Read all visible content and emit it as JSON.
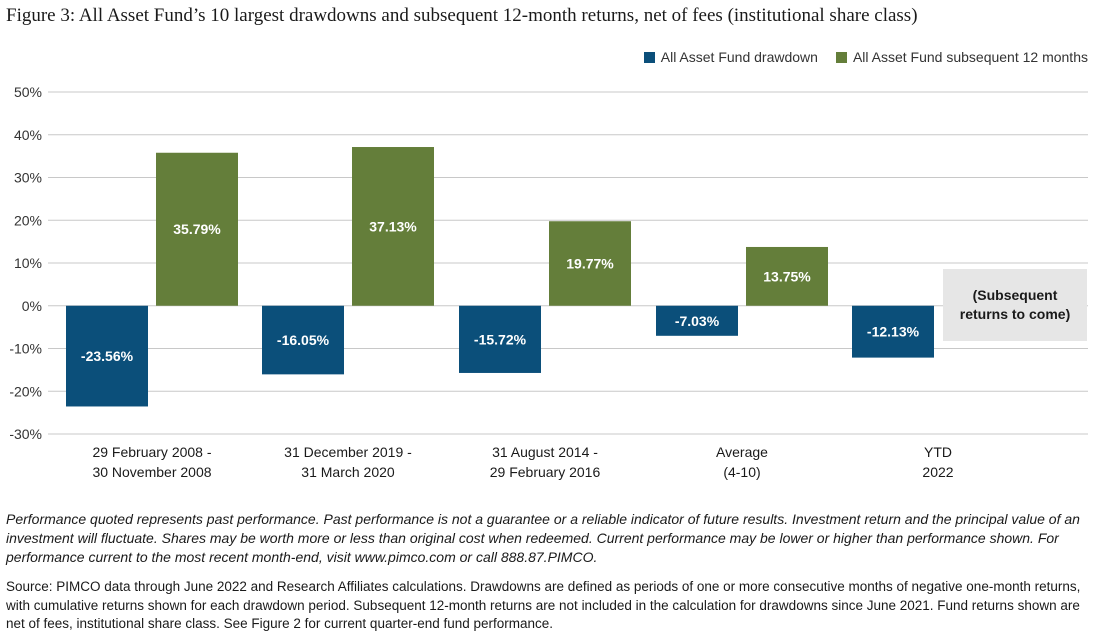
{
  "chart_data": {
    "type": "bar",
    "title": "Figure 3: All Asset Fund’s 10 largest drawdowns and subsequent 12-month returns, net of fees (institutional share class)",
    "categories": [
      [
        "29 February 2008 -",
        "30 November 2008"
      ],
      [
        "31 December 2019 -",
        "31 March 2020"
      ],
      [
        "31 August 2014 -",
        "29 February 2016"
      ],
      [
        "Average",
        "(4-10)"
      ],
      [
        "YTD",
        "2022"
      ]
    ],
    "series": [
      {
        "name": "All Asset Fund drawdown",
        "color": "#0b4f7a",
        "values": [
          -23.56,
          -16.05,
          -15.72,
          -7.03,
          -12.13
        ],
        "labels": [
          "-23.56%",
          "-16.05%",
          "-15.72%",
          "-7.03%",
          "-12.13%"
        ]
      },
      {
        "name": "All Asset Fund subsequent 12 months",
        "color": "#647e3a",
        "values": [
          35.79,
          37.13,
          19.77,
          13.75,
          null
        ],
        "labels": [
          "35.79%",
          "37.13%",
          "19.77%",
          "13.75%",
          null
        ]
      }
    ],
    "y_ticks": [
      "50%",
      "40%",
      "30%",
      "20%",
      "10%",
      "0%",
      "-10%",
      "-20%",
      "-30%"
    ],
    "ylim": [
      -30,
      50
    ],
    "grid": true,
    "legend_position": "top-right",
    "annotation": "(Subsequent returns to come)"
  },
  "notes": "Performance quoted represents past performance. Past performance is not a guarantee or a reliable indicator of future results. Investment return and the principal value of an investment will fluctuate. Shares may be worth more or less than original cost when redeemed. Current performance may be lower or higher than performance shown. For performance current to the most recent month-end, visit www.pimco.com or call 888.87.PIMCO.",
  "source": "Source: PIMCO data through June 2022 and Research Affiliates calculations. Drawdowns are defined as periods of one or more consecutive months of negative one-month returns, with cumulative returns shown for each drawdown period. Subsequent 12-month returns are not included in the calculation for drawdowns since June 2021. Fund returns shown are net of fees, institutional share class. See Figure 2 for current quarter-end fund performance."
}
